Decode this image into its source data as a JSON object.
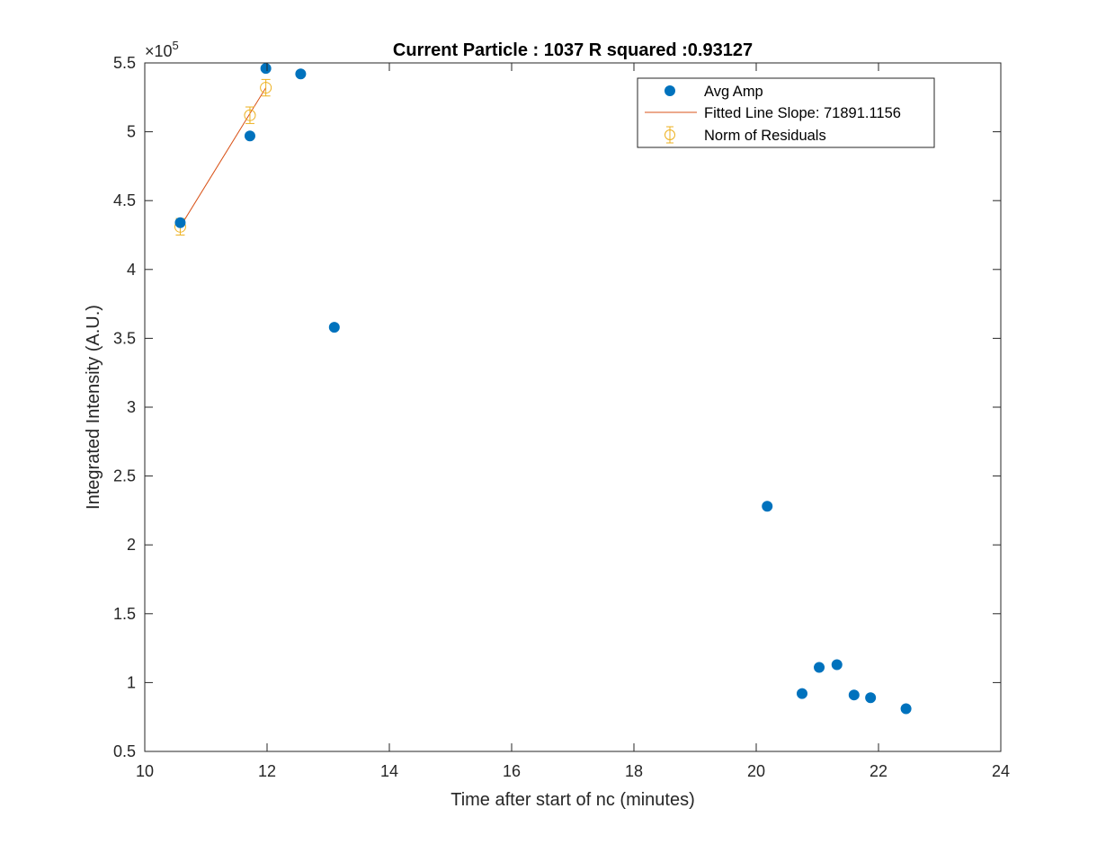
{
  "chart_data": {
    "type": "scatter",
    "title": "Current Particle : 1037   R squared :0.93127",
    "xlabel": "Time after start of nc (minutes)",
    "ylabel": "Integrated Intensity (A.U.)",
    "xlim": [
      10,
      24
    ],
    "ylim": [
      0.5,
      5.5
    ],
    "y_exponent": "5",
    "y_multiplier_prefix": "×10",
    "xticks": [
      "10",
      "12",
      "14",
      "16",
      "18",
      "20",
      "22",
      "24"
    ],
    "yticks": [
      "0.5",
      "1",
      "1.5",
      "2",
      "2.5",
      "3",
      "3.5",
      "4",
      "4.5",
      "5",
      "5.5"
    ],
    "grid": false,
    "legend_position": "top-right",
    "series": [
      {
        "name": "Avg Amp",
        "kind": "markers",
        "color": "#0072BD",
        "x": [
          10.58,
          11.72,
          11.98,
          12.55,
          13.1,
          20.18,
          20.75,
          21.03,
          21.32,
          21.6,
          21.87,
          22.45
        ],
        "y": [
          4.34,
          4.97,
          5.46,
          5.42,
          3.58,
          2.28,
          0.92,
          1.11,
          1.13,
          0.91,
          0.89,
          0.81
        ]
      },
      {
        "name": "Fitted Line Slope: 71891.1156",
        "kind": "line",
        "color": "#D95319",
        "x": [
          10.58,
          11.98
        ],
        "y": [
          4.31,
          5.32
        ]
      },
      {
        "name": "Norm of Residuals",
        "kind": "errorbar",
        "color": "#EDB120",
        "x": [
          10.58,
          11.72,
          11.98
        ],
        "y": [
          4.31,
          5.12,
          5.32
        ],
        "err": [
          0.06,
          0.06,
          0.06
        ]
      }
    ]
  }
}
